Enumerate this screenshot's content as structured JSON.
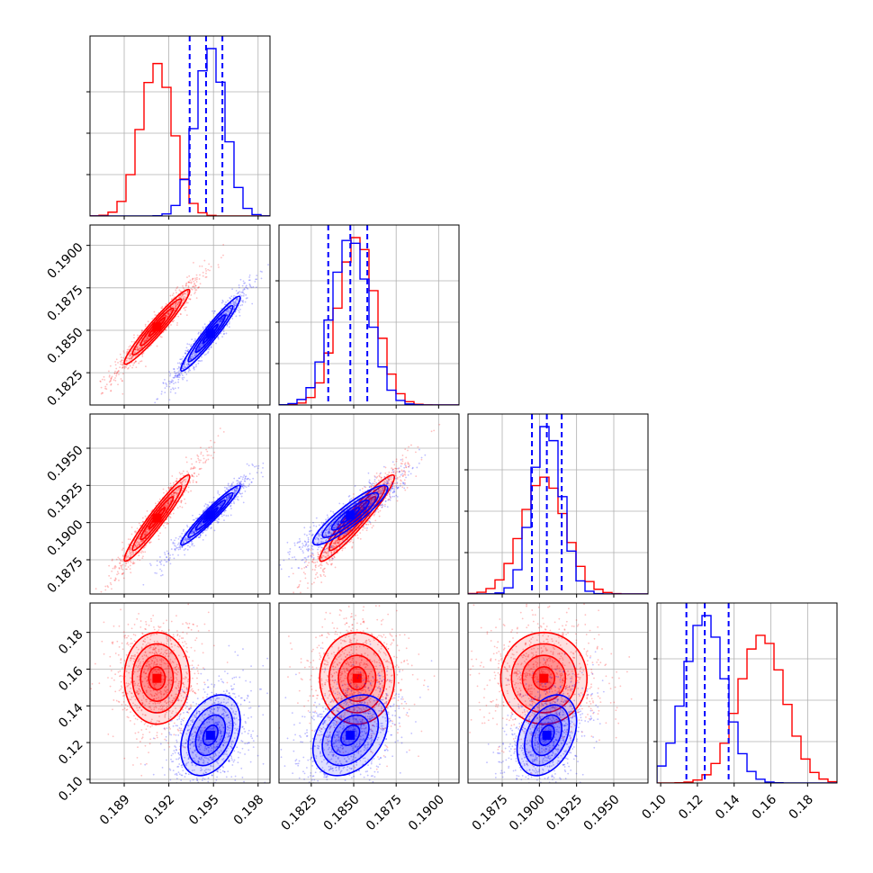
{
  "colors": {
    "red": "#ff0000",
    "blue": "#0000ff",
    "grid": "#b0b0b0"
  },
  "chart_data": {
    "type": "corner",
    "grid": true,
    "series": [
      {
        "color": "#ff0000",
        "mean": [
          0.1912,
          0.1852,
          0.1903,
          0.155
        ],
        "std": [
          0.0011,
          0.0011,
          0.00145,
          0.0125
        ],
        "corr": [
          [
            1,
            0.96,
            0.96,
            0.0
          ],
          [
            0.96,
            1,
            0.95,
            0.0
          ],
          [
            0.96,
            0.95,
            1,
            0.0
          ],
          [
            0.0,
            0.0,
            0.0,
            1
          ]
        ]
      },
      {
        "color": "#0000ff",
        "mean": [
          0.1948,
          0.1848,
          0.1905,
          0.124
        ],
        "std": [
          0.001,
          0.0011,
          0.001,
          0.011
        ],
        "corr": [
          [
            1,
            0.96,
            0.96,
            0.35
          ],
          [
            0.96,
            1,
            0.9,
            0.35
          ],
          [
            0.96,
            0.9,
            1,
            0.35
          ],
          [
            0.35,
            0.35,
            0.35,
            1
          ]
        ]
      }
    ],
    "quantile_lines": {
      "color": "#0000ff",
      "values": [
        [
          0.1934,
          0.1945,
          0.1956
        ],
        [
          0.1835,
          0.1848,
          0.1858
        ],
        [
          0.1895,
          0.1905,
          0.1915
        ],
        [
          0.114,
          0.124,
          0.137
        ]
      ]
    },
    "params": [
      {
        "range": [
          0.1867,
          0.1988
        ],
        "ticks": [
          0.189,
          0.192,
          0.195,
          0.198
        ],
        "tick_labels": [
          "0.189",
          "0.192",
          "0.195",
          "0.198"
        ]
      },
      {
        "range": [
          0.1806,
          0.1912
        ],
        "ticks": [
          0.1825,
          0.185,
          0.1875,
          0.19
        ],
        "tick_labels": [
          "0.1825",
          "0.1850",
          "0.1875",
          "0.1900"
        ]
      },
      {
        "range": [
          0.1852,
          0.1973
        ],
        "ticks": [
          0.1875,
          0.19,
          0.1925,
          0.195
        ],
        "tick_labels": [
          "0.1875",
          "0.1900",
          "0.1925",
          "0.1950"
        ]
      },
      {
        "range": [
          0.098,
          0.196
        ],
        "ticks": [
          0.1,
          0.12,
          0.14,
          0.16,
          0.18
        ],
        "tick_labels": [
          "0.10",
          "0.12",
          "0.14",
          "0.16",
          "0.18"
        ]
      }
    ]
  }
}
